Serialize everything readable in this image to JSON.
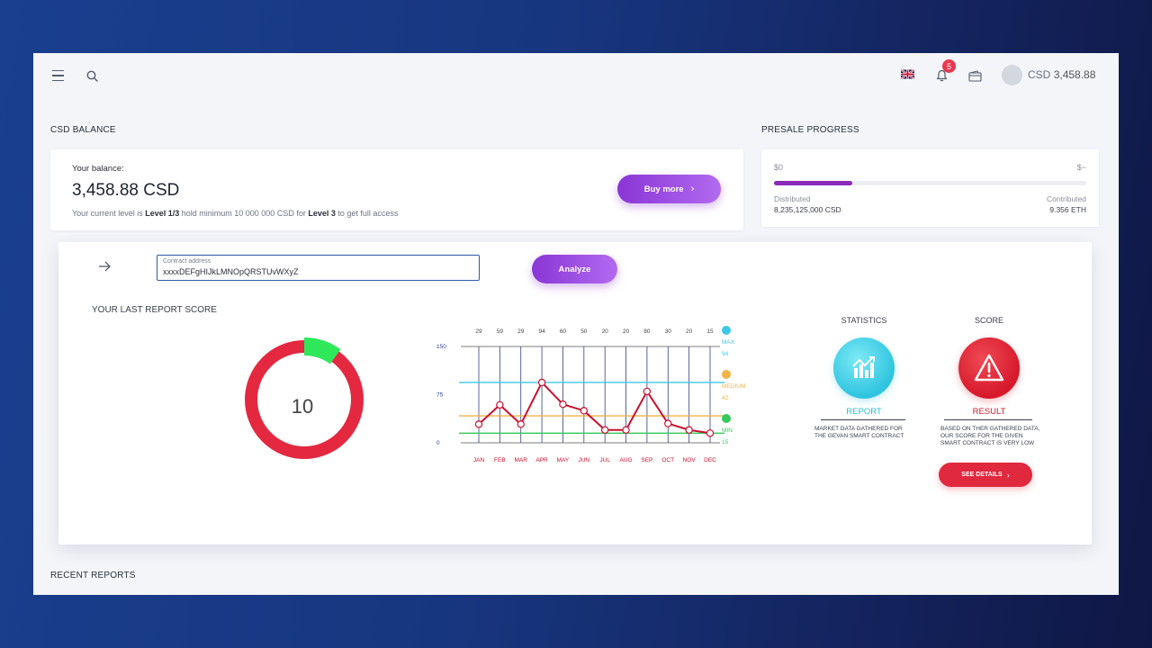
{
  "topbar": {
    "notifications_count": "5",
    "user_currency": "CSD",
    "user_balance": "3,458.88"
  },
  "balance": {
    "section_title": "CSD BALANCE",
    "label": "Your balance:",
    "value": "3,458.88 CSD",
    "note_prefix": "Your current level is ",
    "current_level": "Level 1/3",
    "note_middle": " hold minimum 10 000 000 CSD for ",
    "target_level": "Level 3",
    "note_suffix": " to get full access",
    "buy_label": "Buy more"
  },
  "presale": {
    "section_title": "PRESALE PROGRESS",
    "min_label": "$0",
    "max_label": "$~",
    "progress": 0.25,
    "distributed_label": "Distributed",
    "distributed_value": "8,235,125,000 CSD",
    "contributed_label": "Contributed",
    "contributed_value": "9.356 ETH"
  },
  "analyzer": {
    "contract_label": "Contract address",
    "contract_value": "xxxxDEFgHIJkLMNOpQRSTUvWXyZ",
    "analyze_label": "Analyze",
    "report_title": "YOUR LAST REPORT SCORE",
    "score": "10",
    "score_fraction": 0.1
  },
  "chart_data": {
    "type": "line",
    "categories": [
      "JAN",
      "FEB",
      "MAR",
      "APR",
      "MAY",
      "JUN",
      "JUL",
      "AUG",
      "SEP",
      "OCT",
      "NOV",
      "DEC"
    ],
    "values": [
      29,
      59,
      29,
      94,
      60,
      50,
      20,
      20,
      80,
      30,
      20,
      15
    ],
    "y_ticks": [
      "150",
      "75",
      "0"
    ],
    "ylim": [
      0,
      150
    ],
    "reference_lines": [
      {
        "name": "MAX",
        "value": 94,
        "color": "#3cc8e6"
      },
      {
        "name": "MEDIUM",
        "value": 42,
        "color": "#f0b445"
      },
      {
        "name": "MIN",
        "value": 15,
        "color": "#35c95a"
      }
    ],
    "legend": [
      {
        "label": "MAX",
        "value": "94",
        "color": "#3cc8e6"
      },
      {
        "label": "MEDIUM",
        "value": "42",
        "color": "#f0b445"
      },
      {
        "label": "MIN",
        "value": "15",
        "color": "#35c95a"
      }
    ],
    "line_color": "#c8102e",
    "grid": true
  },
  "statistics": {
    "title": "STATISTICS",
    "link": "REPORT",
    "desc_line1": "MARKET DATA GATHERED FOR",
    "desc_line2": "THE GEVAN SMART CONTRACT"
  },
  "score_panel": {
    "title": "SCORE",
    "link": "RESULT",
    "desc_line1": "BASED ON THER GATHERED DATA,",
    "desc_line2": "OUR SCORE FOR THE GIVEN",
    "desc_line3": "SMART CONTRACT IS VERY LOW",
    "details_label": "SEE DETAILS"
  },
  "recent": {
    "section_title": "RECENT REPORTS"
  }
}
